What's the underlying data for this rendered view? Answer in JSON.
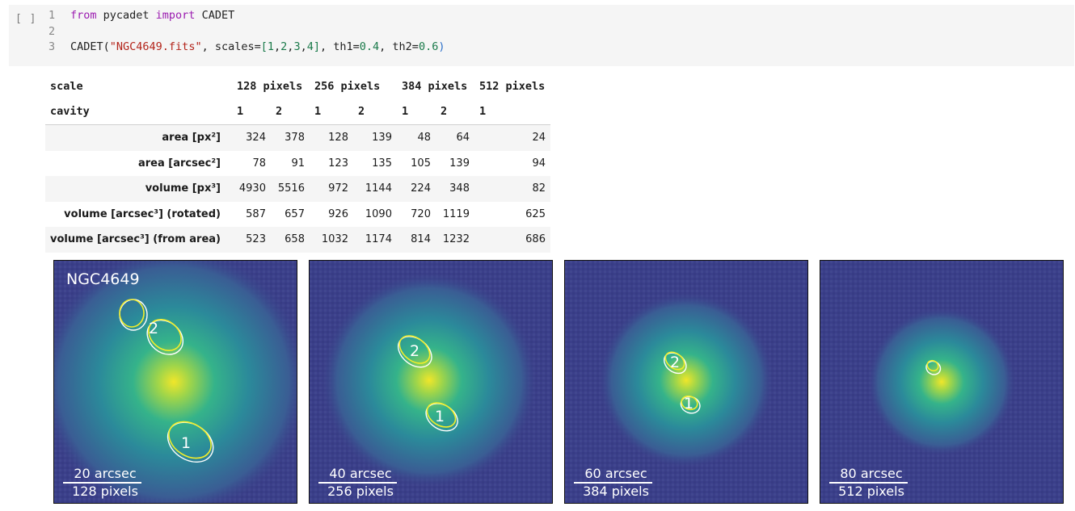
{
  "cell": {
    "prompt": "[ ]",
    "lines": [
      {
        "num": "1",
        "parts": [
          {
            "t": "from",
            "c": "kw"
          },
          {
            "t": " pycadet ",
            "c": ""
          },
          {
            "t": "import",
            "c": "kw"
          },
          {
            "t": " CADET",
            "c": ""
          }
        ]
      },
      {
        "num": "2",
        "parts": []
      },
      {
        "num": "3",
        "parts": [
          {
            "t": "CADET(",
            "c": ""
          },
          {
            "t": "\"NGC4649.fits\"",
            "c": "str"
          },
          {
            "t": ", scales=",
            "c": ""
          },
          {
            "t": "[",
            "c": "num"
          },
          {
            "t": "1",
            "c": "num"
          },
          {
            "t": ",",
            "c": ""
          },
          {
            "t": "2",
            "c": "num"
          },
          {
            "t": ",",
            "c": ""
          },
          {
            "t": "3",
            "c": "num"
          },
          {
            "t": ",",
            "c": ""
          },
          {
            "t": "4",
            "c": "num"
          },
          {
            "t": "]",
            "c": "num"
          },
          {
            "t": ", th1=",
            "c": ""
          },
          {
            "t": "0.4",
            "c": "num"
          },
          {
            "t": ", th2=",
            "c": ""
          },
          {
            "t": "0.6",
            "c": "num"
          },
          {
            "t": ")",
            "c": "br"
          }
        ]
      }
    ]
  },
  "table": {
    "scale_label": "scale",
    "cavity_label": "cavity",
    "scales": [
      "128 pixels",
      "256 pixels",
      "384 pixels",
      "512 pixels"
    ],
    "cavities": [
      "1",
      "2",
      "1",
      "2",
      "1",
      "2",
      "1"
    ],
    "rows": [
      {
        "label": "area [px²]",
        "values": [
          "324",
          "378",
          "128",
          "139",
          "48",
          "64",
          "24"
        ]
      },
      {
        "label": "area [arcsec²]",
        "values": [
          "78",
          "91",
          "123",
          "135",
          "105",
          "139",
          "94"
        ]
      },
      {
        "label": "volume [px³]",
        "values": [
          "4930",
          "5516",
          "972",
          "1144",
          "224",
          "348",
          "82"
        ]
      },
      {
        "label": "volume [arcsec³] (rotated)",
        "values": [
          "587",
          "657",
          "926",
          "1090",
          "720",
          "1119",
          "625"
        ]
      },
      {
        "label": "volume [arcsec³] (from area)",
        "values": [
          "523",
          "658",
          "1032",
          "1174",
          "814",
          "1232",
          "686"
        ]
      }
    ]
  },
  "panels": [
    {
      "title": "NGC4649",
      "scalebar_top": "20 arcsec",
      "scalebar_bottom": "128 pixels",
      "cavity_1": "1",
      "cavity_2": "2"
    },
    {
      "title": "",
      "scalebar_top": "40 arcsec",
      "scalebar_bottom": "256 pixels",
      "cavity_1": "1",
      "cavity_2": "2"
    },
    {
      "title": "",
      "scalebar_top": "60 arcsec",
      "scalebar_bottom": "384 pixels",
      "cavity_1": "1",
      "cavity_2": "2"
    },
    {
      "title": "",
      "scalebar_top": "80 arcsec",
      "scalebar_bottom": "512 pixels",
      "cavity_1": "",
      "cavity_2": ""
    }
  ],
  "colors": {
    "image_background": "#3b3f8a",
    "core": "#e6e22c",
    "contour_inner": "#f2ee2a",
    "contour_outer": "#ffffff"
  }
}
